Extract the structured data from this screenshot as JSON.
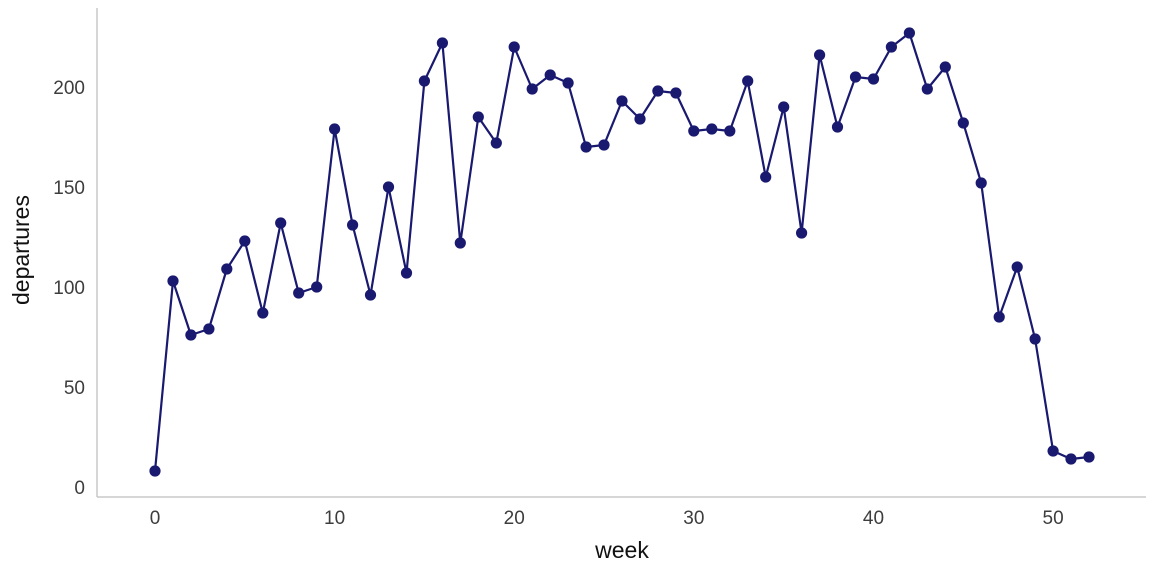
{
  "chart_data": {
    "type": "line",
    "title": "",
    "xlabel": "week",
    "ylabel": "departures",
    "x": [
      0,
      1,
      2,
      3,
      4,
      5,
      6,
      7,
      8,
      9,
      10,
      11,
      12,
      13,
      14,
      15,
      16,
      17,
      18,
      19,
      20,
      21,
      22,
      23,
      24,
      25,
      26,
      27,
      28,
      29,
      30,
      31,
      32,
      33,
      34,
      35,
      36,
      37,
      38,
      39,
      40,
      41,
      42,
      43,
      44,
      45,
      46,
      47,
      48,
      49,
      50,
      51,
      52
    ],
    "series": [
      {
        "name": "departures",
        "values": [
          8,
          103,
          76,
          79,
          109,
          123,
          87,
          132,
          97,
          100,
          179,
          131,
          96,
          150,
          107,
          203,
          222,
          122,
          185,
          172,
          220,
          199,
          206,
          202,
          170,
          171,
          193,
          184,
          198,
          197,
          178,
          179,
          178,
          203,
          155,
          190,
          127,
          216,
          180,
          205,
          204,
          220,
          227,
          199,
          210,
          182,
          152,
          85,
          110,
          74,
          18,
          14,
          15
        ]
      }
    ],
    "xlim": [
      0,
      52
    ],
    "ylim": [
      0,
      230
    ],
    "x_ticks": [
      0,
      10,
      20,
      30,
      40,
      50
    ],
    "y_ticks": [
      0,
      50,
      100,
      150,
      200
    ],
    "grid": false,
    "legend": "none",
    "marker": "circle",
    "line_color": "#191970",
    "axis_color": "#c9c9c9",
    "tick_label_color": "#3d3d3d"
  }
}
